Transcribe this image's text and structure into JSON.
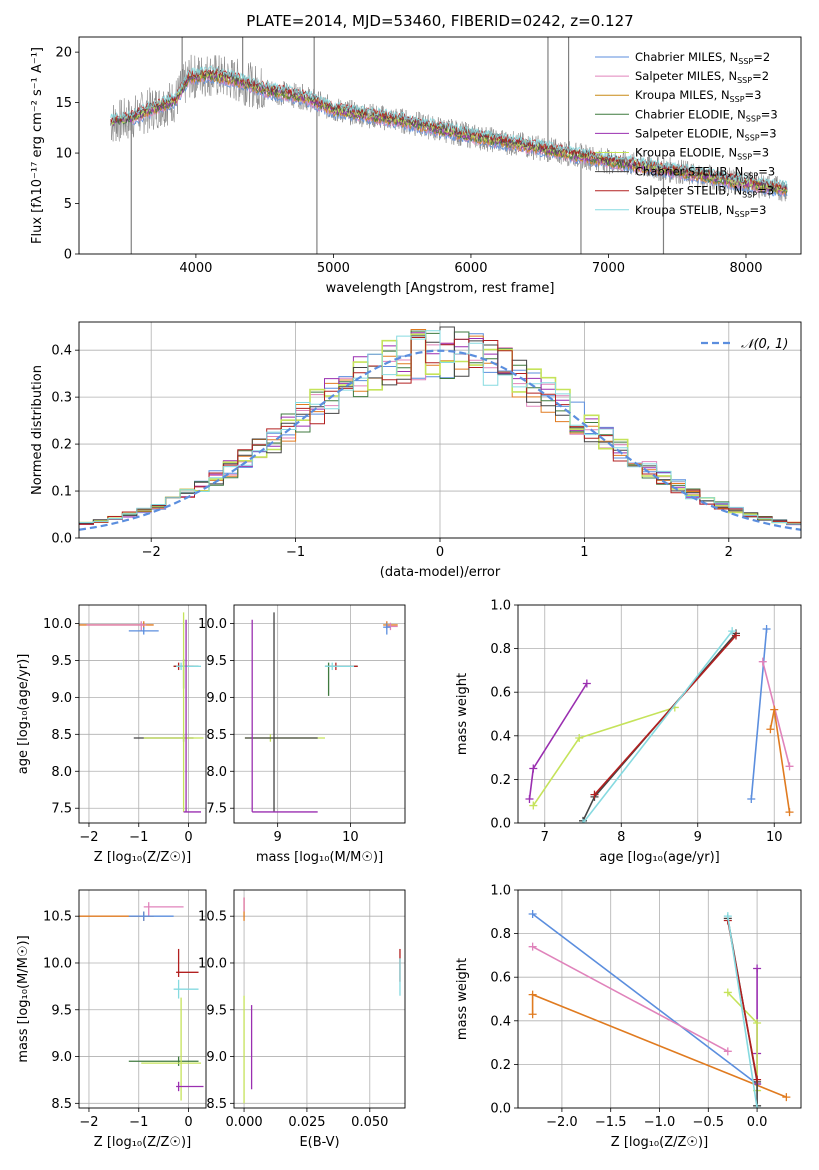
{
  "title": "PLATE=2014, MJD=53460, FIBERID=0242, z=0.127",
  "colors": {
    "chabrier_miles": "#5b8ede",
    "salpeter_miles": "#e083bb",
    "kroupa_miles": "#c88a16",
    "chabrier_elodie": "#3f7a3f",
    "salpeter_elodie": "#9a2fb0",
    "kroupa_elodie": "#c5e35a",
    "chabrier_stelib": "#444444",
    "salpeter_stelib": "#b22020",
    "kroupa_stelib": "#86dae0",
    "data": "#808080",
    "normal": "#5b8ede",
    "orange_series": "#e07b20"
  },
  "chart_data": [
    {
      "id": "spectrum",
      "type": "line",
      "xlabel": "wavelength [Angstrom, rest frame]",
      "ylabel": "Flux [fλ10⁻¹⁷ erg cm⁻² s⁻¹ A⁻¹]",
      "xlim": [
        3150,
        8400
      ],
      "ylim": [
        0,
        21.5
      ],
      "xticks": [
        "4000",
        "5000",
        "6000",
        "7000",
        "8000"
      ],
      "xtick_values": [
        4000,
        5000,
        6000,
        7000,
        8000
      ],
      "yticks": [
        "0",
        "5",
        "10",
        "15",
        "20"
      ],
      "ytick_values": [
        0,
        5,
        10,
        15,
        20
      ],
      "grid": false,
      "legend_position": "upper-right",
      "legend": [
        {
          "text": "Chabrier MILES, N",
          "sub": "SSP",
          "suffix": "=2",
          "color_key": "chabrier_miles"
        },
        {
          "text": "Salpeter MILES, N",
          "sub": "SSP",
          "suffix": "=2",
          "color_key": "salpeter_miles"
        },
        {
          "text": "Kroupa MILES, N",
          "sub": "SSP",
          "suffix": "=3",
          "color_key": "kroupa_miles"
        },
        {
          "text": "Chabrier ELODIE, N",
          "sub": "SSP",
          "suffix": "=3",
          "color_key": "chabrier_elodie"
        },
        {
          "text": "Salpeter ELODIE, N",
          "sub": "SSP",
          "suffix": "=3",
          "color_key": "salpeter_elodie"
        },
        {
          "text": "Kroupa ELODIE, N",
          "sub": "SSP",
          "suffix": "=3",
          "color_key": "kroupa_elodie"
        },
        {
          "text": "Chabrier STELIB, N",
          "sub": "SSP",
          "suffix": "=3",
          "color_key": "chabrier_stelib"
        },
        {
          "text": "Salpeter STELIB, N",
          "sub": "SSP",
          "suffix": "=3",
          "color_key": "salpeter_stelib"
        },
        {
          "text": "Kroupa STELIB, N",
          "sub": "SSP",
          "suffix": "=3",
          "color_key": "kroupa_stelib"
        }
      ],
      "model_continuum": [
        [
          3380,
          13.0
        ],
        [
          3500,
          13.3
        ],
        [
          3700,
          14.5
        ],
        [
          3850,
          15.2
        ],
        [
          3950,
          17.5
        ],
        [
          4100,
          17.8
        ],
        [
          4300,
          17.2
        ],
        [
          4500,
          16.3
        ],
        [
          4800,
          15.5
        ],
        [
          5000,
          14.3
        ],
        [
          5500,
          13.2
        ],
        [
          6000,
          11.7
        ],
        [
          6500,
          10.5
        ],
        [
          7000,
          9.2
        ],
        [
          7500,
          8.2
        ],
        [
          8000,
          7.0
        ],
        [
          8300,
          6.4
        ]
      ],
      "data_noise_amplitude": 1.6,
      "spikes": [
        [
          3900,
          21.5
        ],
        [
          4340,
          21.5
        ],
        [
          4860,
          21.5
        ],
        [
          6560,
          21.5
        ],
        [
          6710,
          21.5
        ],
        [
          6800,
          0
        ],
        [
          3530,
          0
        ],
        [
          4880,
          0
        ],
        [
          7400,
          0
        ]
      ]
    },
    {
      "id": "residuals",
      "type": "histogram",
      "xlabel": "(data-model)/error",
      "ylabel": "Normed distribution",
      "xlim": [
        -2.5,
        2.5
      ],
      "ylim": [
        0,
        0.46
      ],
      "xticks": [
        "−2",
        "−1",
        "0",
        "1",
        "2"
      ],
      "xtick_values": [
        -2,
        -1,
        0,
        1,
        2
      ],
      "yticks": [
        "0.0",
        "0.1",
        "0.2",
        "0.3",
        "0.4"
      ],
      "ytick_values": [
        0,
        0.1,
        0.2,
        0.3,
        0.4
      ],
      "grid": true,
      "legend_position": "upper-right",
      "legend": [
        {
          "text": "𝒩(0, 1)",
          "style": "dashed",
          "color_key": "normal"
        }
      ],
      "bin_width": 0.1,
      "x_start": -2.5
    },
    {
      "id": "age-vs-z",
      "type": "errorbar",
      "xlabel": "Z [log₁₀(Z/Z☉)]",
      "ylabel": "age  [log₁₀(age/yr)]",
      "xlim": [
        -2.2,
        0.35
      ],
      "ylim": [
        7.3,
        10.25
      ],
      "xticks": [
        "−2",
        "−1",
        "0"
      ],
      "xtick_values": [
        -2,
        -1,
        0
      ],
      "yticks": [
        "7.5",
        "8.0",
        "8.5",
        "9.0",
        "9.5",
        "10.0"
      ],
      "ytick_values": [
        7.5,
        8.0,
        8.5,
        9.0,
        9.5,
        10.0
      ],
      "grid": true,
      "points": [
        {
          "x": -0.9,
          "y": 9.98,
          "xerr": [
            1.3,
            0.2
          ],
          "yerr": [
            0.05,
            0.05
          ],
          "c": "orange_series"
        },
        {
          "x": -0.95,
          "y": 9.98,
          "xerr": [
            1.1,
            0.1
          ],
          "yerr": [
            0.08,
            0.05
          ],
          "c": "salpeter_miles"
        },
        {
          "x": -0.9,
          "y": 9.9,
          "xerr": [
            0.3,
            0.3
          ],
          "yerr": [
            0.05,
            0.05
          ],
          "c": "chabrier_miles"
        },
        {
          "x": -0.1,
          "y": 9.42,
          "xerr": [
            0.2,
            0.3
          ],
          "yerr": [
            0.3,
            0.1
          ],
          "c": "chabrier_elodie"
        },
        {
          "x": -0.2,
          "y": 9.42,
          "xerr": [
            0.1,
            0.3
          ],
          "yerr": [
            0.05,
            0.05
          ],
          "c": "salpeter_stelib"
        },
        {
          "x": -0.15,
          "y": 9.42,
          "xerr": [
            0.1,
            0.4
          ],
          "yerr": [
            0.05,
            0.05
          ],
          "c": "kroupa_stelib"
        },
        {
          "x": -0.1,
          "y": 8.45,
          "xerr": [
            1.0,
            0.2
          ],
          "yerr": [
            0.05,
            0.05
          ],
          "c": "chabrier_stelib"
        },
        {
          "x": -0.1,
          "y": 8.45,
          "xerr": [
            0.8,
            0.4
          ],
          "yerr": [
            1.0,
            1.7
          ],
          "c": "kroupa_elodie"
        },
        {
          "x": -0.05,
          "y": 7.45,
          "xerr": [
            0.05,
            0.3
          ],
          "yerr": [
            0.0,
            2.6
          ],
          "c": "salpeter_elodie"
        }
      ]
    },
    {
      "id": "age-vs-mass",
      "type": "errorbar",
      "xlabel": "mass [log₁₀(M/M☉)]",
      "ylabel": "",
      "xlim": [
        8.4,
        10.75
      ],
      "ylim": [
        7.3,
        10.25
      ],
      "xticks": [
        "9",
        "10"
      ],
      "xtick_values": [
        9,
        10
      ],
      "yticks": [
        "7.5",
        "8.0",
        "8.5",
        "9.0",
        "9.5",
        "10.0"
      ],
      "ytick_values": [
        7.5,
        8.0,
        8.5,
        9.0,
        9.5,
        10.0
      ],
      "grid": true,
      "points": [
        {
          "x": 10.5,
          "y": 9.98,
          "xerr": [
            0.05,
            0.15
          ],
          "yerr": [
            0.05,
            0.05
          ],
          "c": "orange_series"
        },
        {
          "x": 10.55,
          "y": 9.96,
          "xerr": [
            0.05,
            0.1
          ],
          "yerr": [
            0.05,
            0.05
          ],
          "c": "salpeter_miles"
        },
        {
          "x": 10.5,
          "y": 9.95,
          "xerr": [
            0.05,
            0.05
          ],
          "yerr": [
            0.1,
            0.05
          ],
          "c": "chabrier_miles"
        },
        {
          "x": 9.7,
          "y": 9.42,
          "xerr": [
            0.05,
            0.4
          ],
          "yerr": [
            0.4,
            0.05
          ],
          "c": "chabrier_elodie"
        },
        {
          "x": 9.8,
          "y": 9.42,
          "xerr": [
            0.1,
            0.3
          ],
          "yerr": [
            0.05,
            0.05
          ],
          "c": "salpeter_stelib"
        },
        {
          "x": 9.75,
          "y": 9.42,
          "xerr": [
            0.1,
            0.3
          ],
          "yerr": [
            0.05,
            0.05
          ],
          "c": "kroupa_stelib"
        },
        {
          "x": 8.9,
          "y": 8.45,
          "xerr": [
            0.35,
            0.75
          ],
          "yerr": [
            0.05,
            0.05
          ],
          "c": "kroupa_elodie"
        },
        {
          "x": 8.95,
          "y": 8.45,
          "xerr": [
            0.4,
            0.6
          ],
          "yerr": [
            1.0,
            1.7
          ],
          "c": "chabrier_stelib"
        },
        {
          "x": 8.65,
          "y": 7.45,
          "xerr": [
            0.0,
            0.9
          ],
          "yerr": [
            0.0,
            2.6
          ],
          "c": "salpeter_elodie"
        }
      ]
    },
    {
      "id": "weight-vs-age",
      "type": "line",
      "xlabel": "age  [log₁₀(age/yr)]",
      "ylabel": "mass weight",
      "xlim": [
        6.65,
        10.35
      ],
      "ylim": [
        0,
        1.0
      ],
      "xticks": [
        "7",
        "8",
        "9",
        "10"
      ],
      "xtick_values": [
        7,
        8,
        9,
        10
      ],
      "yticks": [
        "0.0",
        "0.2",
        "0.4",
        "0.6",
        "0.8",
        "1.0"
      ],
      "ytick_values": [
        0,
        0.2,
        0.4,
        0.6,
        0.8,
        1.0
      ],
      "grid": true,
      "series": [
        {
          "c": "chabrier_miles",
          "x": [
            9.7,
            9.9
          ],
          "y": [
            0.11,
            0.89
          ]
        },
        {
          "c": "salpeter_miles",
          "x": [
            9.85,
            10.2
          ],
          "y": [
            0.74,
            0.26
          ]
        },
        {
          "c": "orange_series",
          "x": [
            9.95,
            10.0,
            10.2
          ],
          "y": [
            0.43,
            0.52,
            0.05
          ]
        },
        {
          "c": "salpeter_elodie",
          "x": [
            6.8,
            6.85,
            7.55
          ],
          "y": [
            0.11,
            0.25,
            0.64
          ]
        },
        {
          "c": "kroupa_elodie",
          "x": [
            6.85,
            7.45,
            8.7
          ],
          "y": [
            0.08,
            0.39,
            0.53
          ]
        },
        {
          "c": "chabrier_stelib",
          "x": [
            7.5,
            7.65,
            9.5
          ],
          "y": [
            0.01,
            0.12,
            0.87
          ]
        },
        {
          "c": "salpeter_stelib",
          "x": [
            7.65,
            9.5
          ],
          "y": [
            0.13,
            0.86
          ]
        },
        {
          "c": "kroupa_stelib",
          "x": [
            7.5,
            9.45
          ],
          "y": [
            0.0,
            0.88
          ]
        }
      ]
    },
    {
      "id": "mass-vs-z",
      "type": "errorbar",
      "xlabel": "Z [log₁₀(Z/Z☉)]",
      "ylabel": "mass [log₁₀(M/M☉)]",
      "xlim": [
        -2.2,
        0.35
      ],
      "ylim": [
        8.45,
        10.78
      ],
      "xticks": [
        "−2",
        "−1",
        "0"
      ],
      "xtick_values": [
        -2,
        -1,
        0
      ],
      "yticks": [
        "8.5",
        "9.0",
        "9.5",
        "10.0",
        "10.5"
      ],
      "ytick_values": [
        8.5,
        9.0,
        9.5,
        10.0,
        10.5
      ],
      "grid": true,
      "points": [
        {
          "x": -0.9,
          "y": 10.5,
          "xerr": [
            1.3,
            0.2
          ],
          "yerr": [
            0.05,
            0.05
          ],
          "c": "orange_series"
        },
        {
          "x": -0.8,
          "y": 10.6,
          "xerr": [
            0.1,
            0.7
          ],
          "yerr": [
            0.1,
            0.05
          ],
          "c": "salpeter_miles"
        },
        {
          "x": -0.9,
          "y": 10.5,
          "xerr": [
            0.3,
            0.6
          ],
          "yerr": [
            0.05,
            0.05
          ],
          "c": "chabrier_miles"
        },
        {
          "x": -0.2,
          "y": 9.9,
          "xerr": [
            0.05,
            0.4
          ],
          "yerr": [
            0.05,
            0.25
          ],
          "c": "salpeter_stelib"
        },
        {
          "x": -0.2,
          "y": 9.72,
          "xerr": [
            0.1,
            0.4
          ],
          "yerr": [
            0.1,
            0.1
          ],
          "c": "kroupa_stelib"
        },
        {
          "x": -0.2,
          "y": 8.95,
          "xerr": [
            1.0,
            0.4
          ],
          "yerr": [
            0.05,
            0.05
          ],
          "c": "chabrier_elodie"
        },
        {
          "x": -0.15,
          "y": 8.93,
          "xerr": [
            0.8,
            0.4
          ],
          "yerr": [
            0.4,
            0.7
          ],
          "c": "kroupa_elodie"
        },
        {
          "x": -0.2,
          "y": 8.68,
          "xerr": [
            0.05,
            0.5
          ],
          "yerr": [
            0.05,
            0.05
          ],
          "c": "salpeter_elodie"
        }
      ]
    },
    {
      "id": "mass-vs-ebv",
      "type": "errorbar",
      "xlabel": "E(B-V)",
      "ylabel": "",
      "xlim": [
        -0.004,
        0.064
      ],
      "ylim": [
        8.45,
        10.78
      ],
      "xticks": [
        "0.000",
        "0.025",
        "0.050"
      ],
      "xtick_values": [
        0,
        0.025,
        0.05
      ],
      "yticks": [
        "8.5",
        "9.0",
        "9.5",
        "10.0",
        "10.5"
      ],
      "ytick_values": [
        8.5,
        9.0,
        9.5,
        10.0,
        10.5
      ],
      "grid": true,
      "points": [
        {
          "x": 0.0,
          "y": 10.55,
          "xerr": [
            0,
            0
          ],
          "yerr": [
            0.1,
            0.15
          ],
          "c": "orange_series"
        },
        {
          "x": 0.0,
          "y": 10.6,
          "xerr": [
            0,
            0
          ],
          "yerr": [
            0.05,
            0.1
          ],
          "c": "salpeter_miles"
        },
        {
          "x": 0.062,
          "y": 9.9,
          "xerr": [
            0,
            0
          ],
          "yerr": [
            0.1,
            0.25
          ],
          "c": "salpeter_stelib"
        },
        {
          "x": 0.062,
          "y": 9.85,
          "xerr": [
            0,
            0
          ],
          "yerr": [
            0.2,
            0.2
          ],
          "c": "kroupa_stelib"
        },
        {
          "x": 0.0,
          "y": 9.1,
          "xerr": [
            0,
            0
          ],
          "yerr": [
            0.6,
            0.55
          ],
          "c": "kroupa_elodie"
        },
        {
          "x": 0.003,
          "y": 9.1,
          "xerr": [
            0,
            0
          ],
          "yerr": [
            0.45,
            0.45
          ],
          "c": "salpeter_elodie"
        }
      ]
    },
    {
      "id": "weight-vs-z",
      "type": "line",
      "xlabel": "Z [log₁₀(Z/Z☉)]",
      "ylabel": "mass weight",
      "xlim": [
        -2.45,
        0.45
      ],
      "ylim": [
        0,
        1.0
      ],
      "xticks": [
        "−2.0",
        "−1.5",
        "−1.0",
        "−0.5",
        "0.0"
      ],
      "xtick_values": [
        -2.0,
        -1.5,
        -1.0,
        -0.5,
        0.0
      ],
      "yticks": [
        "0.0",
        "0.2",
        "0.4",
        "0.6",
        "0.8",
        "1.0"
      ],
      "ytick_values": [
        0,
        0.2,
        0.4,
        0.6,
        0.8,
        1.0
      ],
      "grid": true,
      "series": [
        {
          "c": "chabrier_miles",
          "x": [
            -2.3,
            0.0
          ],
          "y": [
            0.89,
            0.11
          ]
        },
        {
          "c": "salpeter_miles",
          "x": [
            -2.3,
            -0.3
          ],
          "y": [
            0.74,
            0.26
          ]
        },
        {
          "c": "orange_series",
          "x": [
            -2.3,
            -2.3,
            0.3
          ],
          "y": [
            0.43,
            0.52,
            0.05
          ]
        },
        {
          "c": "salpeter_elodie",
          "x": [
            0.0,
            0.0,
            0.0
          ],
          "y": [
            0.64,
            0.25,
            0.11
          ]
        },
        {
          "c": "kroupa_elodie",
          "x": [
            -0.3,
            0.0,
            0.0
          ],
          "y": [
            0.53,
            0.39,
            0.08
          ]
        },
        {
          "c": "chabrier_stelib",
          "x": [
            -0.3,
            0.0,
            0.0
          ],
          "y": [
            0.87,
            0.12,
            0.01
          ]
        },
        {
          "c": "salpeter_stelib",
          "x": [
            -0.3,
            0.0
          ],
          "y": [
            0.86,
            0.13
          ]
        },
        {
          "c": "kroupa_stelib",
          "x": [
            -0.3,
            0.0
          ],
          "y": [
            0.88,
            0.0
          ]
        }
      ]
    }
  ]
}
